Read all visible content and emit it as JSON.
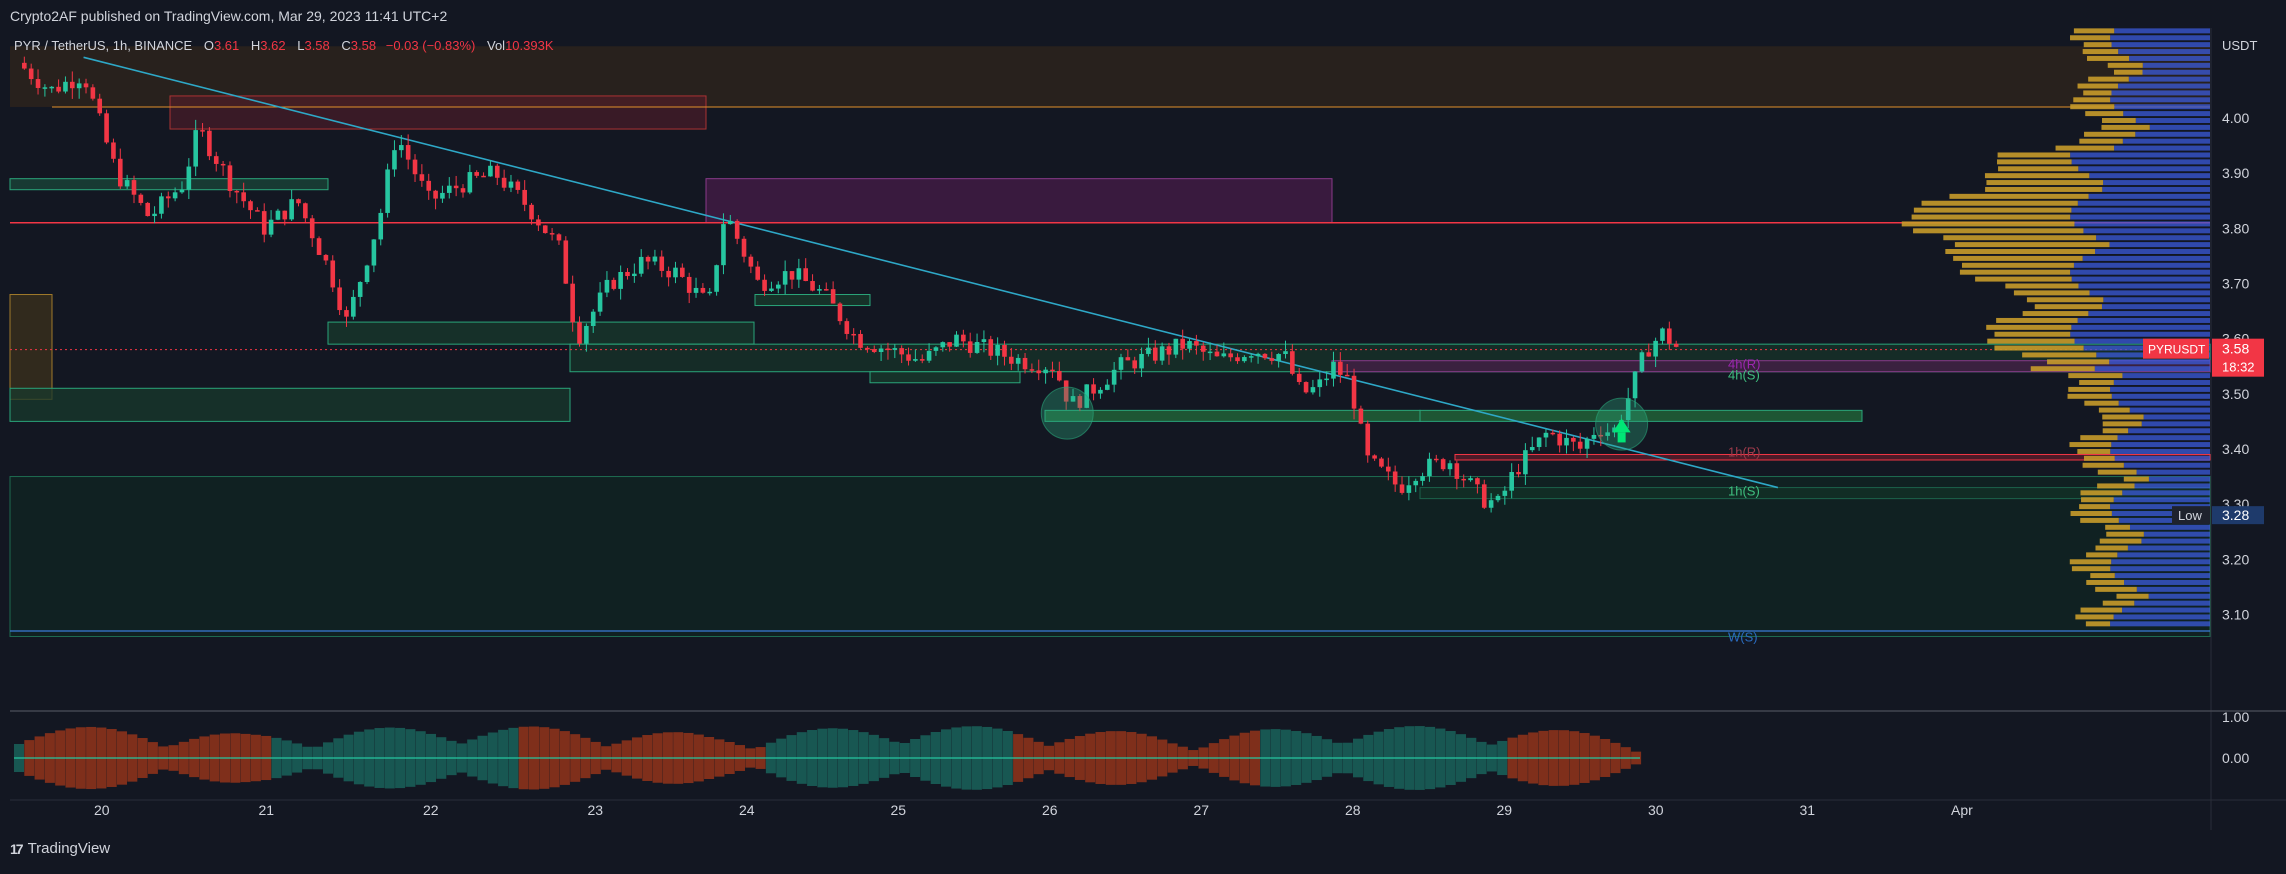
{
  "header": {
    "published": "Crypto2AF published on TradingView.com, Mar 29, 2023 11:41 UTC+2"
  },
  "legend": {
    "symbol": "PYR / TetherUS, 1h, BINANCE",
    "o_label": "O",
    "o_val": "3.61",
    "h_label": "H",
    "h_val": "3.62",
    "l_label": "L",
    "l_val": "3.58",
    "c_label": "C",
    "c_val": "3.58",
    "change": "−0.03 (−0.83%)",
    "vol_label": "Vol",
    "vol_val": "10.393K"
  },
  "footer": {
    "brand": "TradingView"
  },
  "colors": {
    "bg": "#131722",
    "up": "#26c6a0",
    "down": "#f23645",
    "trend": "#2ea8c7",
    "volprofile_gold": "#c89b2a",
    "volprofile_blue": "#3b5bdb",
    "resistance": "#f23645",
    "support_fill": "#1f4d36",
    "purple": "#7b2d6b",
    "orange": "#e0902a"
  },
  "chart_data": {
    "type": "candlestick",
    "symbol": "PYRUSDT",
    "axis_unit": "USDT",
    "y_range": [
      3.0,
      4.2
    ],
    "y_ticks": [
      "4.00",
      "3.90",
      "3.80",
      "3.70",
      "3.60",
      "3.50",
      "3.40",
      "3.30",
      "3.20",
      "3.10"
    ],
    "x_ticks": [
      "20",
      "21",
      "22",
      "23",
      "24",
      "25",
      "26",
      "27",
      "28",
      "29",
      "30",
      "31",
      "Apr"
    ],
    "last_price": "3.58",
    "countdown": "18:32",
    "low_label": "Low",
    "low_value": "3.28",
    "oscillator_ticks": [
      "1.00",
      "0.00"
    ],
    "zone_labels": [
      "4h(R)",
      "4h(S)",
      "1h(R)",
      "1h(S)",
      "W(S)"
    ],
    "key_levels": {
      "resistance": 3.81,
      "weekly_support": 3.07,
      "prev_high_line": 4.02
    },
    "trendline": {
      "start": {
        "day": 19.9,
        "price": 4.11
      },
      "end": {
        "day": 30.2,
        "price": 3.33
      }
    },
    "price_path": [
      [
        19.5,
        4.1
      ],
      [
        19.7,
        4.05
      ],
      [
        19.9,
        4.08
      ],
      [
        20.1,
        3.9
      ],
      [
        20.3,
        3.82
      ],
      [
        20.5,
        3.88
      ],
      [
        20.6,
        3.98
      ],
      [
        20.8,
        3.88
      ],
      [
        21.0,
        3.8
      ],
      [
        21.2,
        3.85
      ],
      [
        21.4,
        3.72
      ],
      [
        21.5,
        3.63
      ],
      [
        21.7,
        3.82
      ],
      [
        21.8,
        3.97
      ],
      [
        22.0,
        3.85
      ],
      [
        22.2,
        3.88
      ],
      [
        22.4,
        3.9
      ],
      [
        22.6,
        3.84
      ],
      [
        22.8,
        3.76
      ],
      [
        22.9,
        3.6
      ],
      [
        23.1,
        3.7
      ],
      [
        23.3,
        3.74
      ],
      [
        23.5,
        3.72
      ],
      [
        23.7,
        3.66
      ],
      [
        23.8,
        3.83
      ],
      [
        24.0,
        3.7
      ],
      [
        24.2,
        3.72
      ],
      [
        24.4,
        3.68
      ],
      [
        24.6,
        3.6
      ],
      [
        24.8,
        3.58
      ],
      [
        25.0,
        3.56
      ],
      [
        25.2,
        3.6
      ],
      [
        25.4,
        3.58
      ],
      [
        25.6,
        3.56
      ],
      [
        25.8,
        3.55
      ],
      [
        25.9,
        3.48
      ],
      [
        26.0,
        3.5
      ],
      [
        26.2,
        3.55
      ],
      [
        26.4,
        3.57
      ],
      [
        26.6,
        3.59
      ],
      [
        26.8,
        3.56
      ],
      [
        27.0,
        3.58
      ],
      [
        27.2,
        3.57
      ],
      [
        27.3,
        3.5
      ],
      [
        27.4,
        3.51
      ],
      [
        27.5,
        3.55
      ],
      [
        27.6,
        3.52
      ],
      [
        27.7,
        3.38
      ],
      [
        27.9,
        3.33
      ],
      [
        28.0,
        3.36
      ],
      [
        28.2,
        3.38
      ],
      [
        28.4,
        3.31
      ],
      [
        28.5,
        3.3
      ],
      [
        28.6,
        3.36
      ],
      [
        28.8,
        3.43
      ],
      [
        29.0,
        3.4
      ],
      [
        29.1,
        3.44
      ],
      [
        29.2,
        3.43
      ],
      [
        29.3,
        3.5
      ],
      [
        29.4,
        3.58
      ],
      [
        29.5,
        3.61
      ],
      [
        29.6,
        3.58
      ]
    ]
  }
}
